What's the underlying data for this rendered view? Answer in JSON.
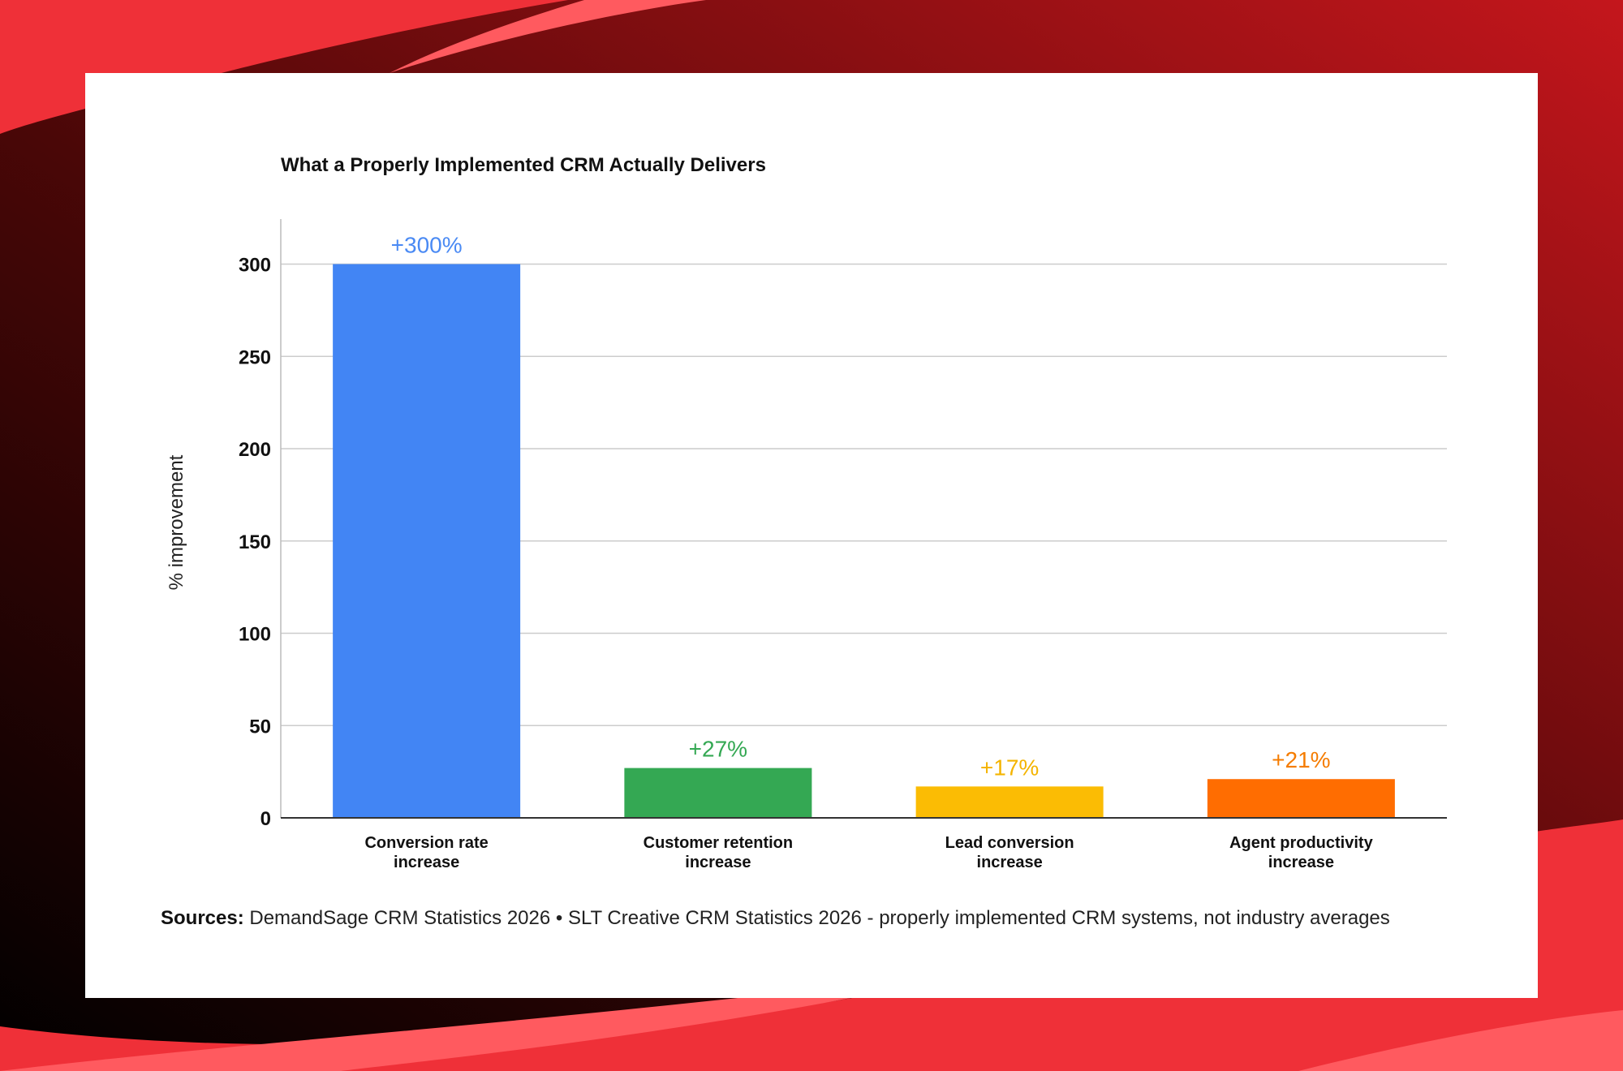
{
  "chart_data": {
    "type": "bar",
    "title": "What a Properly Implemented CRM Actually Delivers",
    "ylabel": "% improvement",
    "xlabel": "",
    "ylim": [
      0,
      320
    ],
    "yticks": [
      0,
      50,
      100,
      150,
      200,
      250,
      300
    ],
    "grid": true,
    "categories": [
      [
        "Conversion rate",
        "increase"
      ],
      [
        "Customer retention",
        "increase"
      ],
      [
        "Lead conversion",
        "increase"
      ],
      [
        "Agent productivity",
        "increase"
      ]
    ],
    "values": [
      300,
      27,
      17,
      21
    ],
    "data_labels": [
      "+300%",
      "+27%",
      "+17%",
      "+21%"
    ],
    "colors": [
      "#4285f4",
      "#34a853",
      "#fbbc04",
      "#ff6d01"
    ],
    "label_colors": [
      "#4a8af4",
      "#34a853",
      "#f4b400",
      "#f57c00"
    ]
  },
  "footer": {
    "sources_label": "Sources:",
    "sources_text": " DemandSage CRM Statistics 2026 • SLT Creative CRM Statistics 2026 - properly implemented CRM systems, not industry averages"
  }
}
